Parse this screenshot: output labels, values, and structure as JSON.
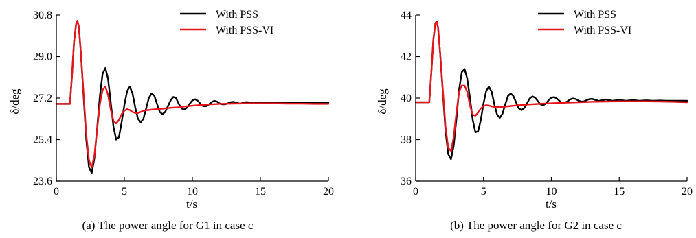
{
  "chart_data": [
    {
      "type": "line",
      "caption": "(a) The power angle for G1 in case c",
      "xlabel": "t/s",
      "ylabel": "δ/deg",
      "xlim": [
        0,
        20
      ],
      "ylim": [
        23.6,
        30.8
      ],
      "xticks": [
        "0",
        "5",
        "10",
        "15",
        "20"
      ],
      "yticks": [
        "23.6",
        "25.4",
        "27.2",
        "29.0",
        "30.8"
      ],
      "legend_position": "top-right",
      "series": [
        {
          "name": "With PSS",
          "color": "#000000",
          "x": [
            0,
            1.0,
            1.15,
            1.3,
            1.45,
            1.55,
            1.65,
            1.8,
            2.0,
            2.2,
            2.4,
            2.6,
            2.8,
            3.0,
            3.2,
            3.4,
            3.6,
            3.8,
            4.0,
            4.2,
            4.4,
            4.6,
            4.8,
            5.0,
            5.2,
            5.4,
            5.6,
            5.8,
            6.0,
            6.2,
            6.4,
            6.6,
            6.8,
            7.0,
            7.2,
            7.4,
            7.6,
            7.8,
            8.0,
            8.2,
            8.4,
            8.6,
            8.8,
            9.0,
            9.2,
            9.4,
            9.6,
            9.8,
            10.0,
            10.2,
            10.4,
            10.6,
            10.8,
            11.0,
            11.2,
            11.4,
            11.6,
            11.8,
            12.0,
            12.2,
            12.4,
            12.6,
            12.8,
            13.0,
            13.5,
            14.0,
            14.5,
            15.0,
            15.5,
            16.0,
            16.5,
            17.0,
            17.5,
            18.0,
            18.5,
            19.0,
            19.5,
            20.0
          ],
          "y": [
            26.95,
            26.95,
            28.2,
            29.6,
            30.4,
            30.55,
            30.3,
            29.2,
            27.3,
            25.4,
            24.2,
            23.95,
            24.6,
            25.9,
            27.3,
            28.25,
            28.5,
            28.05,
            27.0,
            25.95,
            25.4,
            25.5,
            26.15,
            26.9,
            27.5,
            27.7,
            27.4,
            26.8,
            26.3,
            26.15,
            26.3,
            26.75,
            27.2,
            27.4,
            27.3,
            26.95,
            26.6,
            26.5,
            26.6,
            26.85,
            27.1,
            27.25,
            27.2,
            26.95,
            26.75,
            26.7,
            26.78,
            26.95,
            27.1,
            27.15,
            27.08,
            26.95,
            26.85,
            26.85,
            26.92,
            27.02,
            27.08,
            27.05,
            26.97,
            26.93,
            26.93,
            26.97,
            27.02,
            27.04,
            26.96,
            27.03,
            26.98,
            27.02,
            26.99,
            27.01,
            26.99,
            27.01,
            27.0,
            27.0,
            27.0,
            27.0,
            27.0,
            27.0
          ]
        },
        {
          "name": "With PSS-VI",
          "color": "#e8141c",
          "x": [
            0,
            1.0,
            1.15,
            1.3,
            1.45,
            1.55,
            1.65,
            1.8,
            2.0,
            2.2,
            2.4,
            2.6,
            2.8,
            3.0,
            3.2,
            3.4,
            3.6,
            3.8,
            4.0,
            4.2,
            4.4,
            4.6,
            4.8,
            5.0,
            5.2,
            5.4,
            5.6,
            5.8,
            6.0,
            6.2,
            6.4,
            6.6,
            6.8,
            7.0,
            7.5,
            8.0,
            8.5,
            9.0,
            9.5,
            10.0,
            11.0,
            12.0,
            13.0,
            14.0,
            15.0,
            16.0,
            17.0,
            18.0,
            19.0,
            20.0
          ],
          "y": [
            26.95,
            26.95,
            28.2,
            29.6,
            30.4,
            30.55,
            30.3,
            29.2,
            27.4,
            25.6,
            24.5,
            24.2,
            24.7,
            25.85,
            26.95,
            27.55,
            27.7,
            27.35,
            26.7,
            26.2,
            26.1,
            26.25,
            26.5,
            26.65,
            26.72,
            26.68,
            26.6,
            26.55,
            26.55,
            26.6,
            26.65,
            26.68,
            26.68,
            26.7,
            26.72,
            26.75,
            26.78,
            26.8,
            26.84,
            26.87,
            26.92,
            26.95,
            26.96,
            26.97,
            26.97,
            26.97,
            26.96,
            26.96,
            26.95,
            26.95
          ]
        }
      ]
    },
    {
      "type": "line",
      "caption": "(b) The power angle for G2 in case c",
      "xlabel": "t/s",
      "ylabel": "δ/deg",
      "xlim": [
        0,
        20
      ],
      "ylim": [
        36,
        44
      ],
      "xticks": [
        "0",
        "5",
        "10",
        "15",
        "20"
      ],
      "yticks": [
        "36",
        "38",
        "40",
        "42",
        "44"
      ],
      "legend_position": "top-right",
      "series": [
        {
          "name": "With PSS",
          "color": "#000000",
          "x": [
            0,
            1.0,
            1.15,
            1.3,
            1.45,
            1.55,
            1.65,
            1.8,
            2.0,
            2.2,
            2.4,
            2.6,
            2.8,
            3.0,
            3.2,
            3.4,
            3.6,
            3.8,
            4.0,
            4.2,
            4.4,
            4.6,
            4.8,
            5.0,
            5.2,
            5.4,
            5.6,
            5.8,
            6.0,
            6.2,
            6.4,
            6.6,
            6.8,
            7.0,
            7.2,
            7.4,
            7.6,
            7.8,
            8.0,
            8.2,
            8.4,
            8.6,
            8.8,
            9.0,
            9.2,
            9.4,
            9.6,
            9.8,
            10.0,
            10.2,
            10.4,
            10.6,
            10.8,
            11.0,
            11.2,
            11.4,
            11.6,
            11.8,
            12.0,
            12.2,
            12.4,
            12.6,
            12.8,
            13.0,
            13.5,
            14.0,
            14.5,
            15.0,
            15.5,
            16.0,
            16.5,
            17.0,
            17.5,
            18.0,
            18.5,
            19.0,
            19.5,
            20.0
          ],
          "y": [
            39.8,
            39.8,
            41.2,
            42.8,
            43.6,
            43.7,
            43.4,
            42.2,
            40.3,
            38.4,
            37.3,
            37.05,
            37.7,
            39.0,
            40.4,
            41.25,
            41.4,
            40.95,
            40.0,
            38.95,
            38.35,
            38.4,
            38.95,
            39.75,
            40.35,
            40.55,
            40.3,
            39.7,
            39.2,
            39.05,
            39.25,
            39.7,
            40.1,
            40.22,
            40.1,
            39.8,
            39.5,
            39.42,
            39.52,
            39.75,
            39.98,
            40.08,
            40.02,
            39.85,
            39.7,
            39.66,
            39.74,
            39.9,
            40.02,
            40.05,
            39.98,
            39.86,
            39.78,
            39.78,
            39.85,
            39.94,
            39.98,
            39.95,
            39.87,
            39.83,
            39.84,
            39.9,
            39.95,
            39.96,
            39.86,
            39.93,
            39.87,
            39.91,
            39.87,
            39.9,
            39.87,
            39.89,
            39.87,
            39.88,
            39.87,
            39.87,
            39.87,
            39.87
          ]
        },
        {
          "name": "With PSS-VI",
          "color": "#e8141c",
          "x": [
            0,
            1.0,
            1.15,
            1.3,
            1.45,
            1.55,
            1.65,
            1.8,
            2.0,
            2.2,
            2.4,
            2.6,
            2.8,
            3.0,
            3.2,
            3.4,
            3.6,
            3.8,
            4.0,
            4.2,
            4.4,
            4.6,
            4.8,
            5.0,
            5.2,
            5.4,
            5.6,
            5.8,
            6.0,
            6.5,
            7.0,
            7.5,
            8.0,
            8.5,
            9.0,
            9.5,
            10.0,
            11.0,
            12.0,
            13.0,
            14.0,
            15.0,
            16.0,
            17.0,
            18.0,
            19.0,
            20.0
          ],
          "y": [
            39.8,
            39.8,
            41.2,
            42.8,
            43.6,
            43.7,
            43.4,
            42.2,
            40.4,
            38.6,
            37.6,
            37.45,
            38.1,
            39.3,
            40.3,
            40.6,
            40.6,
            40.3,
            39.65,
            39.2,
            39.15,
            39.3,
            39.5,
            39.62,
            39.66,
            39.64,
            39.6,
            39.57,
            39.56,
            39.58,
            39.62,
            39.65,
            39.68,
            39.7,
            39.72,
            39.74,
            39.75,
            39.78,
            39.8,
            39.82,
            39.83,
            39.84,
            39.84,
            39.84,
            39.83,
            39.82,
            39.8
          ]
        }
      ]
    }
  ]
}
